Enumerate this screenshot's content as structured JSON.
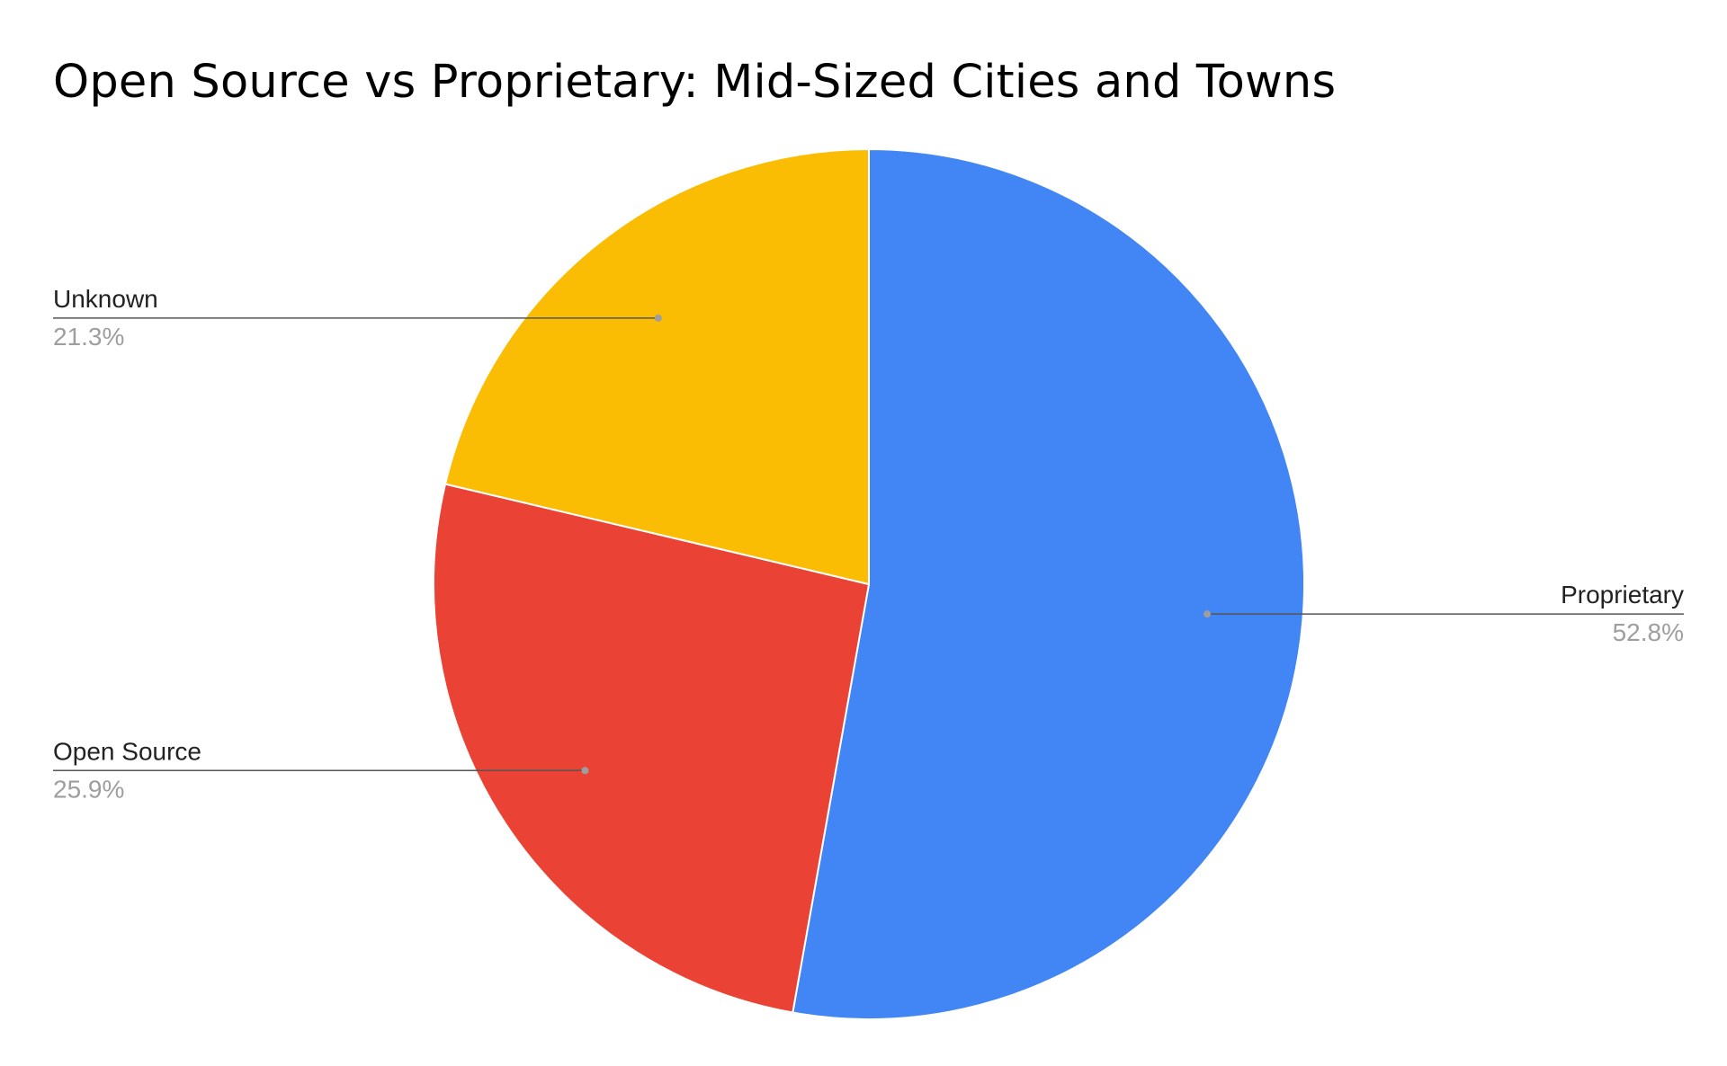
{
  "chart_data": {
    "type": "pie",
    "title": "Open Source vs Proprietary: Mid-Sized Cities and Towns",
    "slices": [
      {
        "label": "Proprietary",
        "value": 52.8,
        "percent_label": "52.8%",
        "color": "#4285F4"
      },
      {
        "label": "Open Source",
        "value": 25.9,
        "percent_label": "25.9%",
        "color": "#EA4335"
      },
      {
        "label": "Unknown",
        "value": 21.3,
        "percent_label": "21.3%",
        "color": "#FBBC04"
      }
    ],
    "legend": "none",
    "labels": "outside-with-leader-lines",
    "start_angle": "12 o'clock, clockwise"
  }
}
